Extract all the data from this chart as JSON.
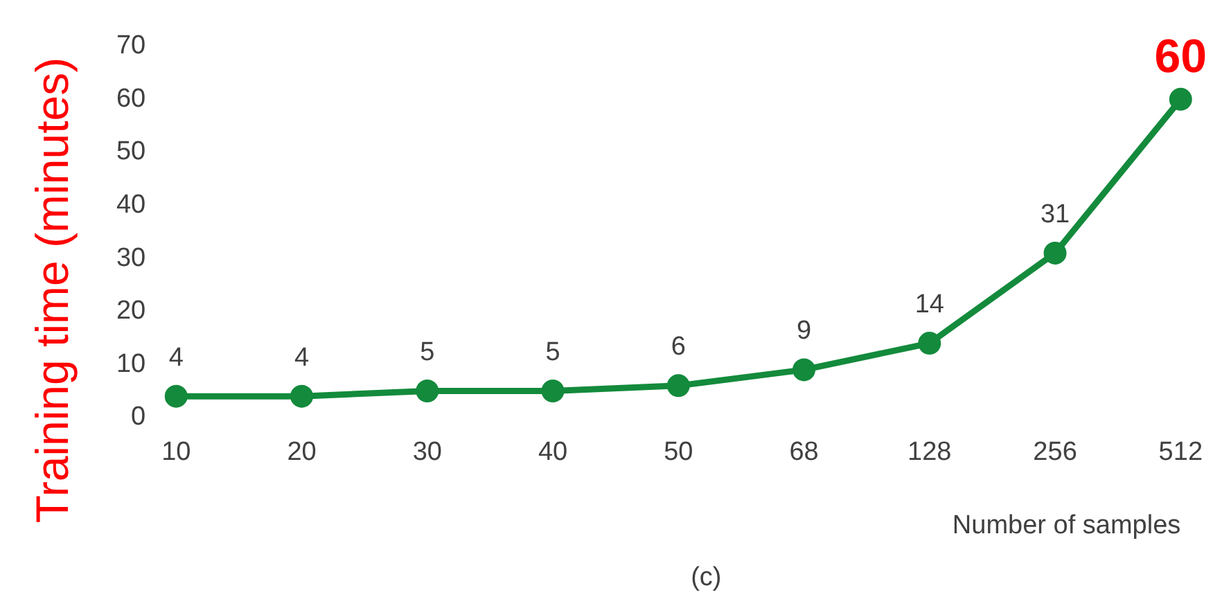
{
  "chart_data": {
    "type": "line",
    "categories": [
      "10",
      "20",
      "30",
      "40",
      "50",
      "68",
      "128",
      "256",
      "512"
    ],
    "series": [
      {
        "color": "#138a3c",
        "values": [
          4,
          4,
          5,
          5,
          6,
          9,
          14,
          31,
          60
        ]
      }
    ],
    "ylabel": "Training time (minutes)",
    "xlabel": "Number of samples",
    "annotations": [
      "(c)"
    ],
    "ylim": [
      0,
      70
    ],
    "yticks": [
      0,
      10,
      20,
      30,
      40,
      50,
      60,
      70
    ],
    "grid": false,
    "legend": false,
    "marker": "circle",
    "line_style": "solid",
    "data_labels": true
  }
}
